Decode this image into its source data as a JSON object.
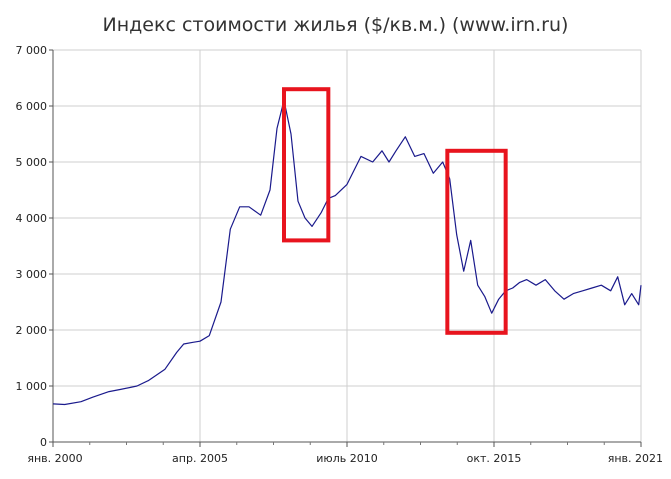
{
  "chart_data": {
    "type": "line",
    "title": "Индекс стоимости жилья ($/кв.м.) (www.irn.ru)",
    "xlabel": "",
    "ylabel": "",
    "ylim": [
      0,
      7000
    ],
    "xlim": [
      "2000-01",
      "2021-01"
    ],
    "grid": true,
    "y_ticks": [
      0,
      1000,
      2000,
      3000,
      4000,
      5000,
      6000,
      7000
    ],
    "y_tick_labels": [
      "0",
      "1 000",
      "2 000",
      "3 000",
      "4 000",
      "5 000",
      "6 000",
      "7 000"
    ],
    "x_ticks": [
      "2000-01",
      "2005-04",
      "2010-07",
      "2015-10",
      "2021-01"
    ],
    "x_tick_labels": [
      "янв. 2000",
      "апр. 2005",
      "июль 2010",
      "окт. 2015",
      "янв. 2021"
    ],
    "series": [
      {
        "color": "#1a1a8c",
        "x": [
          "2000-01",
          "2000-06",
          "2001-01",
          "2001-06",
          "2002-01",
          "2002-06",
          "2003-01",
          "2003-06",
          "2004-01",
          "2004-06",
          "2004-09",
          "2005-01",
          "2005-04",
          "2005-08",
          "2006-01",
          "2006-05",
          "2006-09",
          "2007-01",
          "2007-06",
          "2007-10",
          "2008-01",
          "2008-04",
          "2008-07",
          "2008-10",
          "2009-01",
          "2009-04",
          "2009-08",
          "2009-11",
          "2010-02",
          "2010-07",
          "2011-01",
          "2011-06",
          "2011-10",
          "2012-01",
          "2012-04",
          "2012-08",
          "2012-12",
          "2013-04",
          "2013-08",
          "2013-12",
          "2014-03",
          "2014-06",
          "2014-09",
          "2014-12",
          "2015-03",
          "2015-06",
          "2015-09",
          "2015-12",
          "2016-03",
          "2016-06",
          "2016-09",
          "2016-12",
          "2017-04",
          "2017-08",
          "2017-12",
          "2018-04",
          "2018-08",
          "2018-12",
          "2019-04",
          "2019-08",
          "2019-12",
          "2020-03",
          "2020-06",
          "2020-09",
          "2020-12",
          "2021-01"
        ],
        "values": [
          680,
          670,
          720,
          800,
          900,
          940,
          1000,
          1100,
          1300,
          1600,
          1750,
          1780,
          1800,
          1900,
          2500,
          3800,
          4200,
          4200,
          4050,
          4500,
          5600,
          6100,
          5500,
          4300,
          4000,
          3850,
          4100,
          4350,
          4400,
          4600,
          5100,
          5000,
          5200,
          5000,
          5200,
          5450,
          5100,
          5150,
          4800,
          5000,
          4700,
          3700,
          3050,
          3600,
          2800,
          2600,
          2300,
          2550,
          2700,
          2750,
          2850,
          2900,
          2800,
          2900,
          2700,
          2550,
          2650,
          2700,
          2750,
          2800,
          2700,
          2950,
          2450,
          2650,
          2450,
          2800
        ]
      }
    ]
  },
  "annotations": [
    {
      "type": "rectangle",
      "color": "#e8141e",
      "x_range": [
        "2008-04",
        "2009-11"
      ],
      "y_range": [
        3600,
        6300
      ]
    },
    {
      "type": "rectangle",
      "color": "#e8141e",
      "x_range": [
        "2014-02",
        "2016-03"
      ],
      "y_range": [
        1950,
        5200
      ]
    }
  ]
}
